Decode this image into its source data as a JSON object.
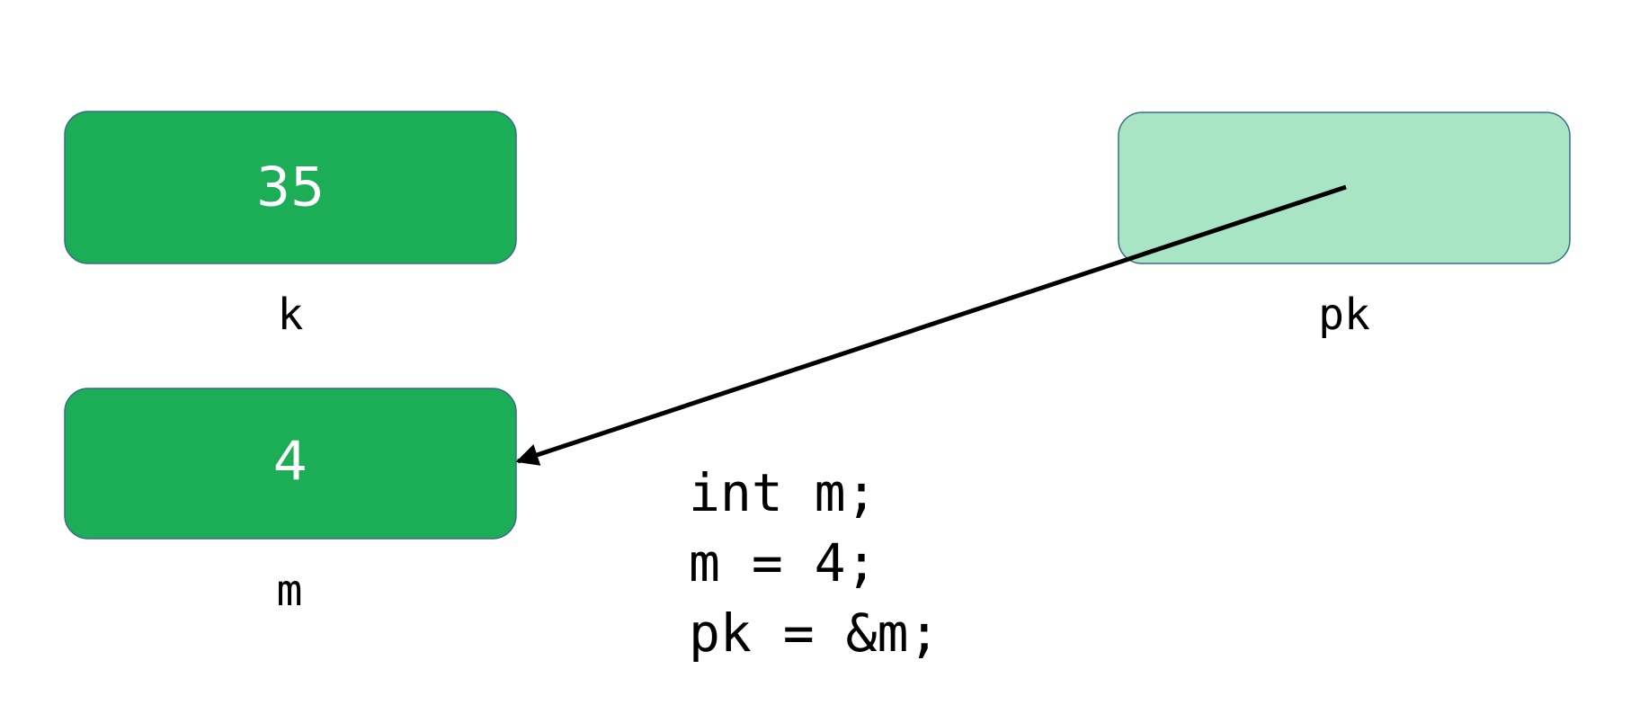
{
  "nodes": [
    {
      "value": "35",
      "label": "k"
    },
    {
      "value": "4",
      "label": "m"
    },
    {
      "value": "",
      "label": "pk"
    }
  ],
  "code": {
    "lines": [
      "int m;",
      "m = 4;",
      "pk = &m;"
    ]
  }
}
